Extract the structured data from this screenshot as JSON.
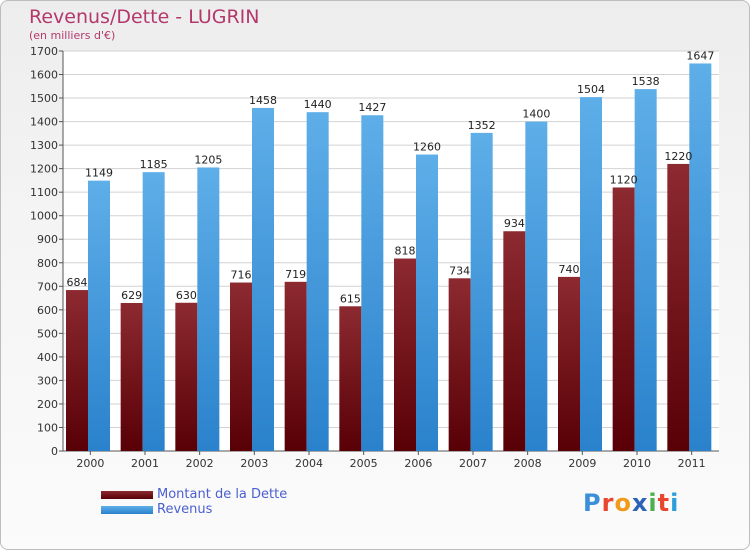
{
  "header": {
    "title": "Revenus/Dette - LUGRIN",
    "subtitle": "(en milliers d'€)"
  },
  "logo": {
    "text": "Proxiti",
    "colors": [
      "#3a8fd8",
      "#e8462e",
      "#f29a1a",
      "#2c63b6",
      "#4caf50",
      "#e8462e",
      "#2c9fd8"
    ]
  },
  "chart_data": {
    "type": "bar",
    "title": "Revenus/Dette - LUGRIN",
    "subtitle": "(en milliers d'€)",
    "categories": [
      "2000",
      "2001",
      "2002",
      "2003",
      "2004",
      "2005",
      "2006",
      "2007",
      "2008",
      "2009",
      "2010",
      "2011"
    ],
    "series": [
      {
        "name": "Montant de la Dette",
        "values": [
          684,
          629,
          630,
          716,
          719,
          615,
          818,
          734,
          934,
          740,
          1120,
          1220
        ],
        "color": "#7a1418"
      },
      {
        "name": "Revenus",
        "values": [
          1149,
          1185,
          1205,
          1458,
          1440,
          1427,
          1260,
          1352,
          1400,
          1504,
          1538,
          1647
        ],
        "color": "#3d97dd"
      }
    ],
    "ylim": [
      0,
      1700
    ],
    "ytick_step": 100,
    "grid": true,
    "legend_position": "bottom-left"
  }
}
